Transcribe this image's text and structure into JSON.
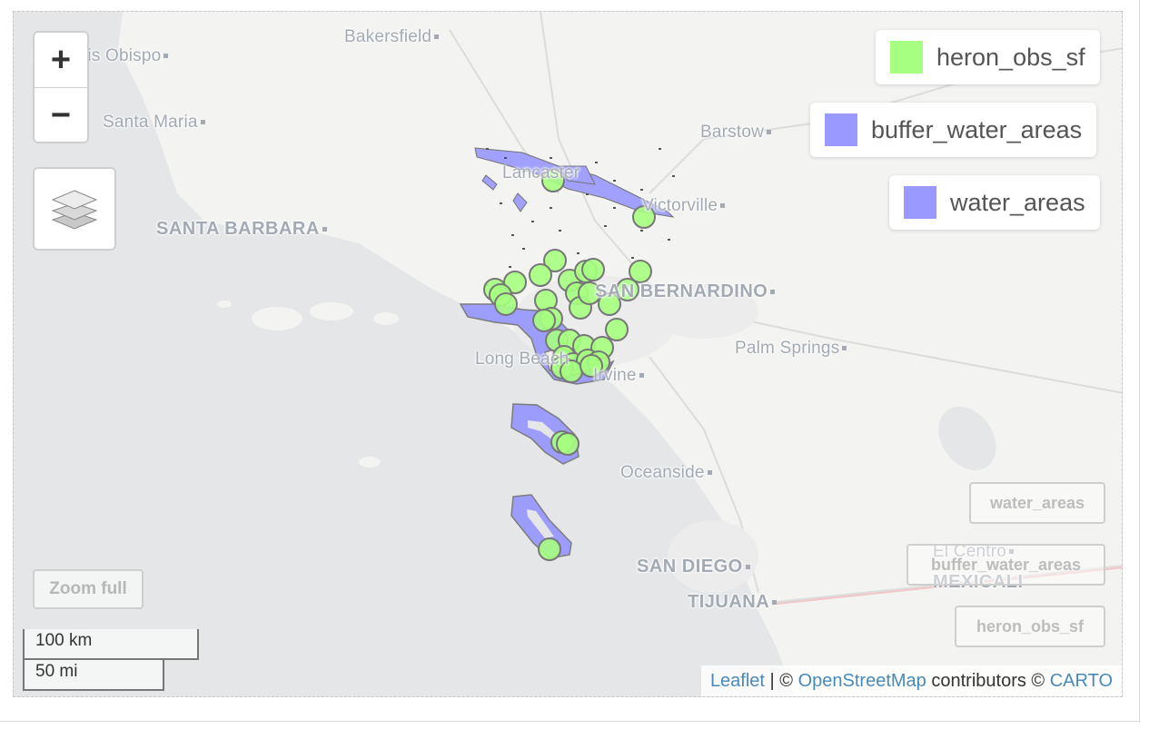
{
  "map": {
    "cities": [
      {
        "id": "san-luis-obispo",
        "label": "San Luis Obispo",
        "big": false
      },
      {
        "id": "bakersfield",
        "label": "Bakersfield",
        "big": false
      },
      {
        "id": "santa-maria",
        "label": "Santa Maria",
        "big": false
      },
      {
        "id": "barstow",
        "label": "Barstow",
        "big": false
      },
      {
        "id": "lancaster",
        "label": "Lancaster",
        "big": false
      },
      {
        "id": "victorville",
        "label": "Victorville",
        "big": false
      },
      {
        "id": "santa-barbara",
        "label": "SANTA BARBARA",
        "big": true
      },
      {
        "id": "san-bernardino",
        "label": "SAN BERNARDINO",
        "big": true
      },
      {
        "id": "palm-springs",
        "label": "Palm Springs",
        "big": false
      },
      {
        "id": "long-beach",
        "label": "Long Beach",
        "big": false
      },
      {
        "id": "irvine",
        "label": "Irvine",
        "big": false
      },
      {
        "id": "oceanside",
        "label": "Oceanside",
        "big": false
      },
      {
        "id": "san-diego",
        "label": "SAN DIEGO",
        "big": true
      },
      {
        "id": "tijuana",
        "label": "TIJUANA",
        "big": true
      },
      {
        "id": "el-centro",
        "label": "El Centro",
        "big": false
      },
      {
        "id": "mexicali",
        "label": "MEXICALI",
        "big": true
      }
    ],
    "zoom_in_label": "+",
    "zoom_out_label": "−",
    "layers_icon": "layers-icon",
    "zoom_full_label": "Zoom full",
    "legend": [
      {
        "id": "heron_obs_sf",
        "label": "heron_obs_sf",
        "color": "#a6ff80"
      },
      {
        "id": "buffer_water_areas",
        "label": "buffer_water_areas",
        "color": "#9999ff"
      },
      {
        "id": "water_areas",
        "label": "water_areas",
        "color": "#9999ff"
      }
    ],
    "layer_toggles": [
      {
        "id": "water_areas",
        "label": "water_areas"
      },
      {
        "id": "buffer_water_areas",
        "label": "buffer_water_areas"
      },
      {
        "id": "heron_obs_sf",
        "label": "heron_obs_sf"
      }
    ],
    "scale": {
      "km": "100 km",
      "mi": "50 mi"
    },
    "attribution": {
      "leaflet": "Leaflet",
      "sep1": " | © ",
      "osm": "OpenStreetMap",
      "contributors": " contributors © ",
      "carto": "CARTO"
    },
    "colors": {
      "land": "#f3f3f1",
      "water": "#e4e6e7",
      "points_fill": "#a6ff80",
      "buffer_fill": "#9999ff"
    }
  }
}
